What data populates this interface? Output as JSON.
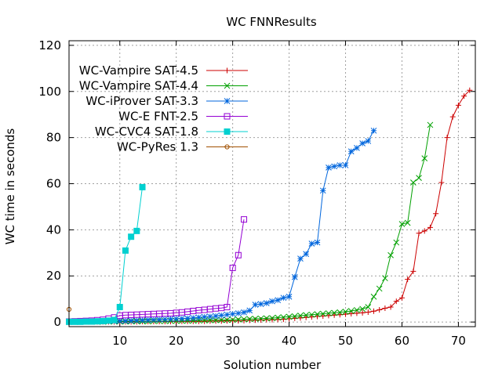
{
  "chart_data": {
    "type": "line",
    "title": "WC FNNResults",
    "xlabel": "Solution number",
    "ylabel": "WC time in seconds",
    "xlim": [
      1,
      73
    ],
    "ylim": [
      -2,
      122
    ],
    "xticks": [
      10,
      20,
      30,
      40,
      50,
      60,
      70
    ],
    "yticks": [
      0,
      20,
      40,
      60,
      80,
      100,
      120
    ],
    "grid": true,
    "legend_position": "top-left",
    "series": [
      {
        "name": "WC-Vampire SAT-4.5",
        "color": "#cc0000",
        "marker": "plus",
        "x": [
          1,
          2,
          3,
          4,
          5,
          6,
          7,
          8,
          9,
          10,
          11,
          12,
          13,
          14,
          15,
          16,
          17,
          18,
          19,
          20,
          21,
          22,
          23,
          24,
          25,
          26,
          27,
          28,
          29,
          30,
          31,
          32,
          33,
          34,
          35,
          36,
          37,
          38,
          39,
          40,
          41,
          42,
          43,
          44,
          45,
          46,
          47,
          48,
          49,
          50,
          51,
          52,
          53,
          54,
          55,
          56,
          57,
          58,
          59,
          60,
          61,
          62,
          63,
          64,
          65,
          66,
          67,
          68,
          69,
          70,
          71,
          72
        ],
        "y": [
          0.1,
          0.1,
          0.1,
          0.1,
          0.1,
          0.1,
          0.1,
          0.1,
          0.1,
          0.1,
          0.1,
          0.1,
          0.1,
          0.2,
          0.2,
          0.2,
          0.2,
          0.2,
          0.2,
          0.3,
          0.3,
          0.3,
          0.3,
          0.3,
          0.3,
          0.4,
          0.4,
          0.4,
          0.5,
          0.5,
          0.5,
          0.6,
          0.7,
          0.8,
          0.9,
          1.0,
          1.0,
          1.1,
          1.2,
          1.4,
          1.6,
          1.8,
          2.0,
          2.2,
          2.4,
          2.6,
          2.8,
          3.0,
          3.2,
          3.4,
          3.6,
          3.8,
          4.0,
          4.3,
          4.7,
          5.3,
          6.0,
          6.5,
          9.0,
          10.5,
          18.5,
          22,
          38.5,
          39.5,
          41,
          47,
          60.5,
          80,
          89,
          94,
          98,
          100.5
        ]
      },
      {
        "name": "WC-Vampire SAT-4.4",
        "color": "#00a000",
        "marker": "x",
        "x": [
          1,
          2,
          3,
          4,
          5,
          6,
          7,
          8,
          9,
          10,
          11,
          12,
          13,
          14,
          15,
          16,
          17,
          18,
          19,
          20,
          21,
          22,
          23,
          24,
          25,
          26,
          27,
          28,
          29,
          30,
          31,
          32,
          33,
          34,
          35,
          36,
          37,
          38,
          39,
          40,
          41,
          42,
          43,
          44,
          45,
          46,
          47,
          48,
          49,
          50,
          51,
          52,
          53,
          54,
          55,
          56,
          57,
          58,
          59,
          60,
          61,
          62,
          63,
          64,
          65
        ],
        "y": [
          0.1,
          0.1,
          0.1,
          0.1,
          0.1,
          0.1,
          0.1,
          0.2,
          0.2,
          0.2,
          0.2,
          0.3,
          0.3,
          0.3,
          0.3,
          0.4,
          0.4,
          0.4,
          0.5,
          0.5,
          0.5,
          0.6,
          0.6,
          0.7,
          0.7,
          0.8,
          0.8,
          0.9,
          0.9,
          1.0,
          1.1,
          1.2,
          1.3,
          1.4,
          1.5,
          1.6,
          1.7,
          1.9,
          2.1,
          2.3,
          2.5,
          2.8,
          3.0,
          3.2,
          3.4,
          3.6,
          3.8,
          4.0,
          4.2,
          4.5,
          4.8,
          5.2,
          5.7,
          6.5,
          11,
          14.5,
          19,
          29,
          34.5,
          42.5,
          43,
          60.5,
          62.5,
          71,
          85.5
        ]
      },
      {
        "name": "WC-iProver SAT-3.3",
        "color": "#0066dd",
        "marker": "star",
        "x": [
          1,
          2,
          3,
          4,
          5,
          6,
          7,
          8,
          9,
          10,
          11,
          12,
          13,
          14,
          15,
          16,
          17,
          18,
          19,
          20,
          21,
          22,
          23,
          24,
          25,
          26,
          27,
          28,
          29,
          30,
          31,
          32,
          33,
          34,
          35,
          36,
          37,
          38,
          39,
          40,
          41,
          42,
          43,
          44,
          45,
          46,
          47,
          48,
          49,
          50,
          51,
          52,
          53,
          54,
          55
        ],
        "y": [
          0.2,
          0.2,
          0.2,
          0.2,
          0.2,
          0.3,
          0.3,
          0.4,
          0.4,
          0.5,
          0.5,
          0.6,
          0.7,
          0.8,
          0.9,
          1.0,
          1.1,
          1.2,
          1.3,
          1.4,
          1.5,
          1.6,
          1.8,
          2.0,
          2.2,
          2.4,
          2.6,
          2.9,
          3.2,
          3.5,
          3.8,
          4.2,
          5,
          7.5,
          7.8,
          8.2,
          9,
          9.5,
          10.5,
          11,
          19.5,
          27.5,
          29.5,
          34,
          34.5,
          57,
          67,
          67.5,
          68,
          68,
          74,
          75.5,
          77.5,
          78.5,
          83
        ]
      },
      {
        "name": "WC-E FNT-2.5",
        "color": "#9400d3",
        "marker": "square",
        "x": [
          1,
          2,
          3,
          4,
          5,
          6,
          7,
          8,
          9,
          10,
          11,
          12,
          13,
          14,
          15,
          16,
          17,
          18,
          19,
          20,
          21,
          22,
          23,
          24,
          25,
          26,
          27,
          28,
          29,
          30,
          31,
          32
        ],
        "y": [
          0.2,
          0.3,
          0.4,
          0.5,
          0.6,
          0.8,
          1.0,
          1.5,
          2.0,
          2.8,
          3.0,
          3.1,
          3.2,
          3.3,
          3.4,
          3.5,
          3.6,
          3.7,
          3.8,
          4.0,
          4.2,
          4.5,
          4.8,
          5.1,
          5.3,
          5.6,
          5.9,
          6.1,
          6.5,
          23.5,
          29,
          44.5
        ]
      },
      {
        "name": "WC-CVC4 SAT-1.8",
        "color": "#00d0d0",
        "marker": "filled-square",
        "x": [
          1,
          2,
          3,
          4,
          5,
          6,
          7,
          8,
          9,
          10,
          11,
          12,
          13,
          14
        ],
        "y": [
          0.1,
          0.1,
          0.1,
          0.2,
          0.2,
          0.3,
          0.4,
          0.6,
          0.9,
          6.5,
          31,
          37,
          39.5,
          58.5
        ]
      },
      {
        "name": "WC-PyRes 1.3",
        "color": "#a05000",
        "marker": "circle",
        "x": [
          1
        ],
        "y": [
          5.5
        ]
      }
    ]
  }
}
